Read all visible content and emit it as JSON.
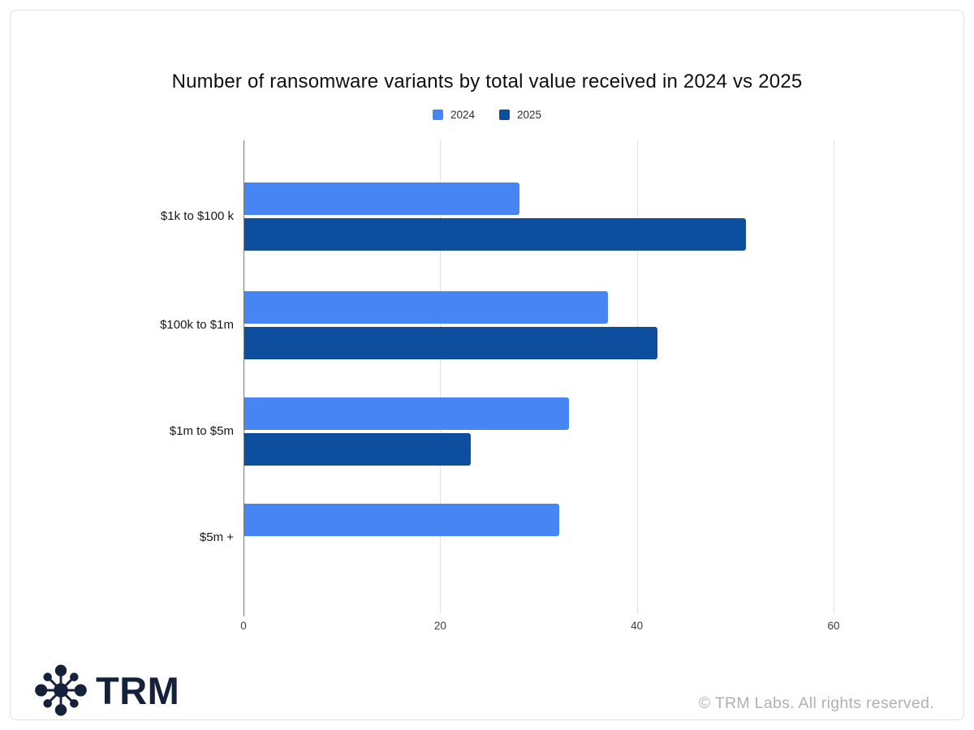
{
  "chart_data": {
    "type": "bar",
    "orientation": "horizontal",
    "title": "Number of ransomware variants by total value received in 2024 vs 2025",
    "categories": [
      "$1k to $100 k",
      "$100k to $1m",
      "$1m to $5m",
      "$5m +"
    ],
    "series": [
      {
        "name": "2024",
        "color": "#4785F5",
        "values": [
          28,
          37,
          33,
          32
        ]
      },
      {
        "name": "2025",
        "color": "#0D4F9E",
        "values": [
          51,
          42,
          23,
          0
        ]
      }
    ],
    "x_ticks": [
      0,
      20,
      40,
      60
    ],
    "xlim": [
      0,
      66
    ],
    "grid": true,
    "legend_position": "top"
  },
  "footer": {
    "logo_text": "TRM",
    "logo_icon": "network-hub-icon",
    "copyright": "© TRM Labs. All rights reserved."
  },
  "colors": {
    "brand_navy": "#15213A",
    "copyright_gray": "#AEB1B6",
    "gridline": "#E2E2E2",
    "axis_line": "#787878"
  }
}
